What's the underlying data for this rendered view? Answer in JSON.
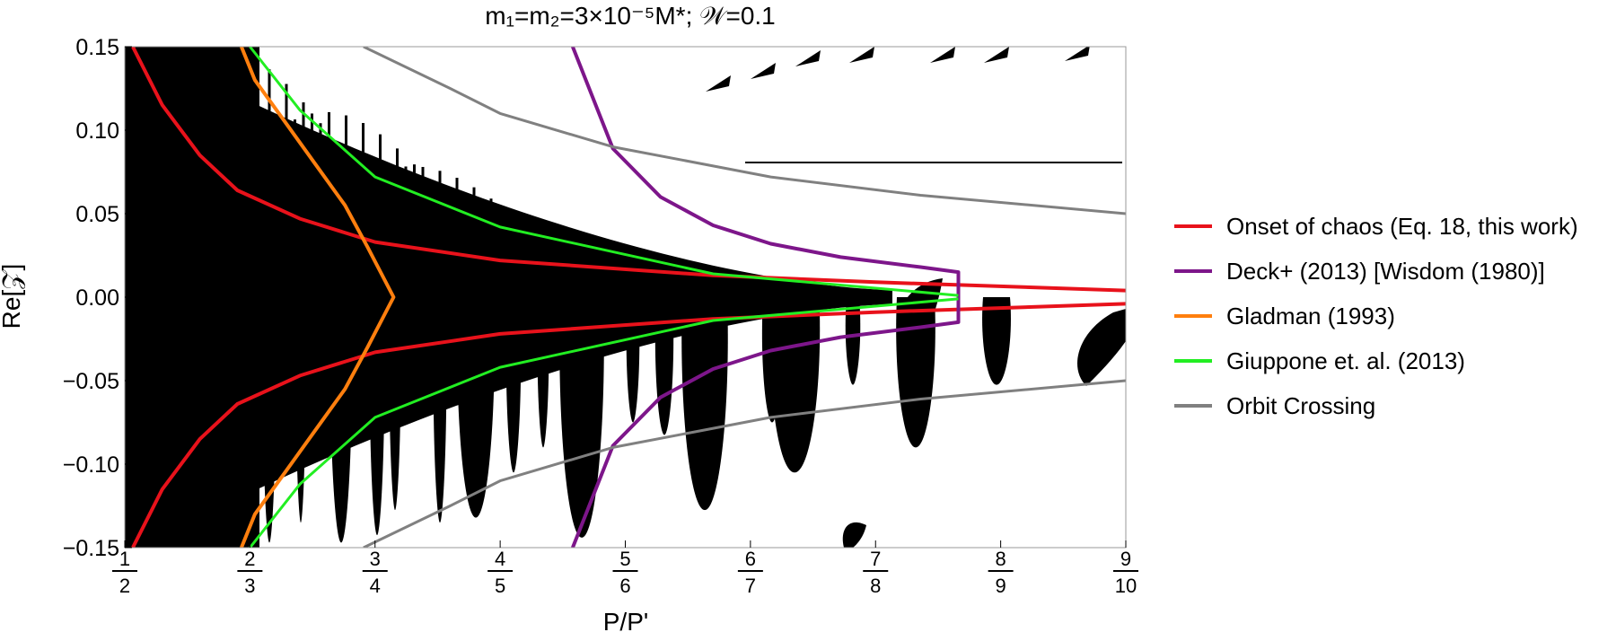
{
  "chart_data": {
    "type": "line",
    "title": "m₁=m₂=3×10⁻⁵M*; 𝒲=0.1",
    "xlabel": "P/P'",
    "ylabel": "Re[𝒵]",
    "ylim": [
      -0.15,
      0.15
    ],
    "y_ticks": [
      "0.15",
      "0.10",
      "0.05",
      "0.00",
      "−0.05",
      "−0.10",
      "−0.15"
    ],
    "y_tick_values": [
      0.15,
      0.1,
      0.05,
      0.0,
      -0.05,
      -0.1,
      -0.15
    ],
    "x_ticks": [
      {
        "num": "1",
        "den": "2",
        "value": 0.5
      },
      {
        "num": "2",
        "den": "3",
        "value": 0.6667
      },
      {
        "num": "3",
        "den": "4",
        "value": 0.75
      },
      {
        "num": "4",
        "den": "5",
        "value": 0.8
      },
      {
        "num": "5",
        "den": "6",
        "value": 0.8333
      },
      {
        "num": "6",
        "den": "7",
        "value": 0.8571
      },
      {
        "num": "7",
        "den": "8",
        "value": 0.875
      },
      {
        "num": "8",
        "den": "9",
        "value": 0.8889
      },
      {
        "num": "9",
        "den": "10",
        "value": 0.9
      }
    ],
    "legend_position": "right",
    "background": "black/white chaos map (black = chaotic region)",
    "series": [
      {
        "name": "Onset of chaos (Eq. 18, this work)",
        "color": "#e8121b",
        "branches": [
          {
            "x": [
              0.5107,
              0.55,
              0.6,
              0.65,
              0.7,
              0.75,
              0.8,
              0.85,
              0.875,
              0.9
            ],
            "y": [
              0.15,
              0.115,
              0.085,
              0.064,
              0.047,
              0.033,
              0.022,
              0.013,
              0.009,
              0.004
            ]
          },
          {
            "x": [
              0.5107,
              0.55,
              0.6,
              0.65,
              0.7,
              0.75,
              0.8,
              0.85,
              0.875,
              0.9
            ],
            "y": [
              -0.15,
              -0.115,
              -0.085,
              -0.064,
              -0.047,
              -0.033,
              -0.022,
              -0.013,
              -0.009,
              -0.004
            ]
          }
        ]
      },
      {
        "name": "Deck+ (2013) [Wisdom (1980)]",
        "color": "#7d168a",
        "branches": [
          {
            "x": [
              0.8193,
              0.83,
              0.84,
              0.85,
              0.86,
              0.87,
              0.88,
              0.8842,
              0.8842
            ],
            "y": [
              0.15,
              0.089,
              0.06,
              0.043,
              0.032,
              0.024,
              0.018,
              0.015,
              0.0
            ]
          },
          {
            "x": [
              0.8193,
              0.83,
              0.84,
              0.85,
              0.86,
              0.87,
              0.88,
              0.8842,
              0.8842
            ],
            "y": [
              -0.15,
              -0.089,
              -0.06,
              -0.043,
              -0.032,
              -0.024,
              -0.018,
              -0.015,
              0.0
            ]
          }
        ]
      },
      {
        "name": "Gladman (1993)",
        "color": "#ff7f0e",
        "branches": [
          {
            "x": [
              0.6554,
              0.67,
              0.69,
              0.71,
              0.73,
              0.745,
              0.7574,
              0.745,
              0.73,
              0.71,
              0.69,
              0.67,
              0.6554
            ],
            "y": [
              0.15,
              0.13,
              0.105,
              0.08,
              0.055,
              0.03,
              0.0,
              -0.03,
              -0.055,
              -0.08,
              -0.105,
              -0.13,
              -0.15
            ]
          }
        ]
      },
      {
        "name": "Giuppone et. al. (2013)",
        "color": "#22ee22",
        "branches": [
          {
            "x": [
              0.6667,
              0.7,
              0.75,
              0.8,
              0.85,
              0.8842
            ],
            "y": [
              0.15,
              0.112,
              0.072,
              0.042,
              0.014,
              0.001
            ]
          },
          {
            "x": [
              0.6667,
              0.7,
              0.75,
              0.8,
              0.85,
              0.8842
            ],
            "y": [
              -0.15,
              -0.112,
              -0.072,
              -0.042,
              -0.014,
              -0.001
            ]
          }
        ]
      },
      {
        "name": "Orbit Crossing",
        "color": "#808080",
        "branches": [
          {
            "x": [
              0.7423,
              0.78,
              0.8,
              0.83,
              0.86,
              0.88,
              0.9
            ],
            "y": [
              0.15,
              0.125,
              0.11,
              0.09,
              0.072,
              0.061,
              0.05
            ]
          },
          {
            "x": [
              0.7423,
              0.78,
              0.8,
              0.83,
              0.86,
              0.88,
              0.9
            ],
            "y": [
              -0.15,
              -0.125,
              -0.11,
              -0.09,
              -0.072,
              -0.061,
              -0.05
            ]
          }
        ]
      }
    ]
  }
}
